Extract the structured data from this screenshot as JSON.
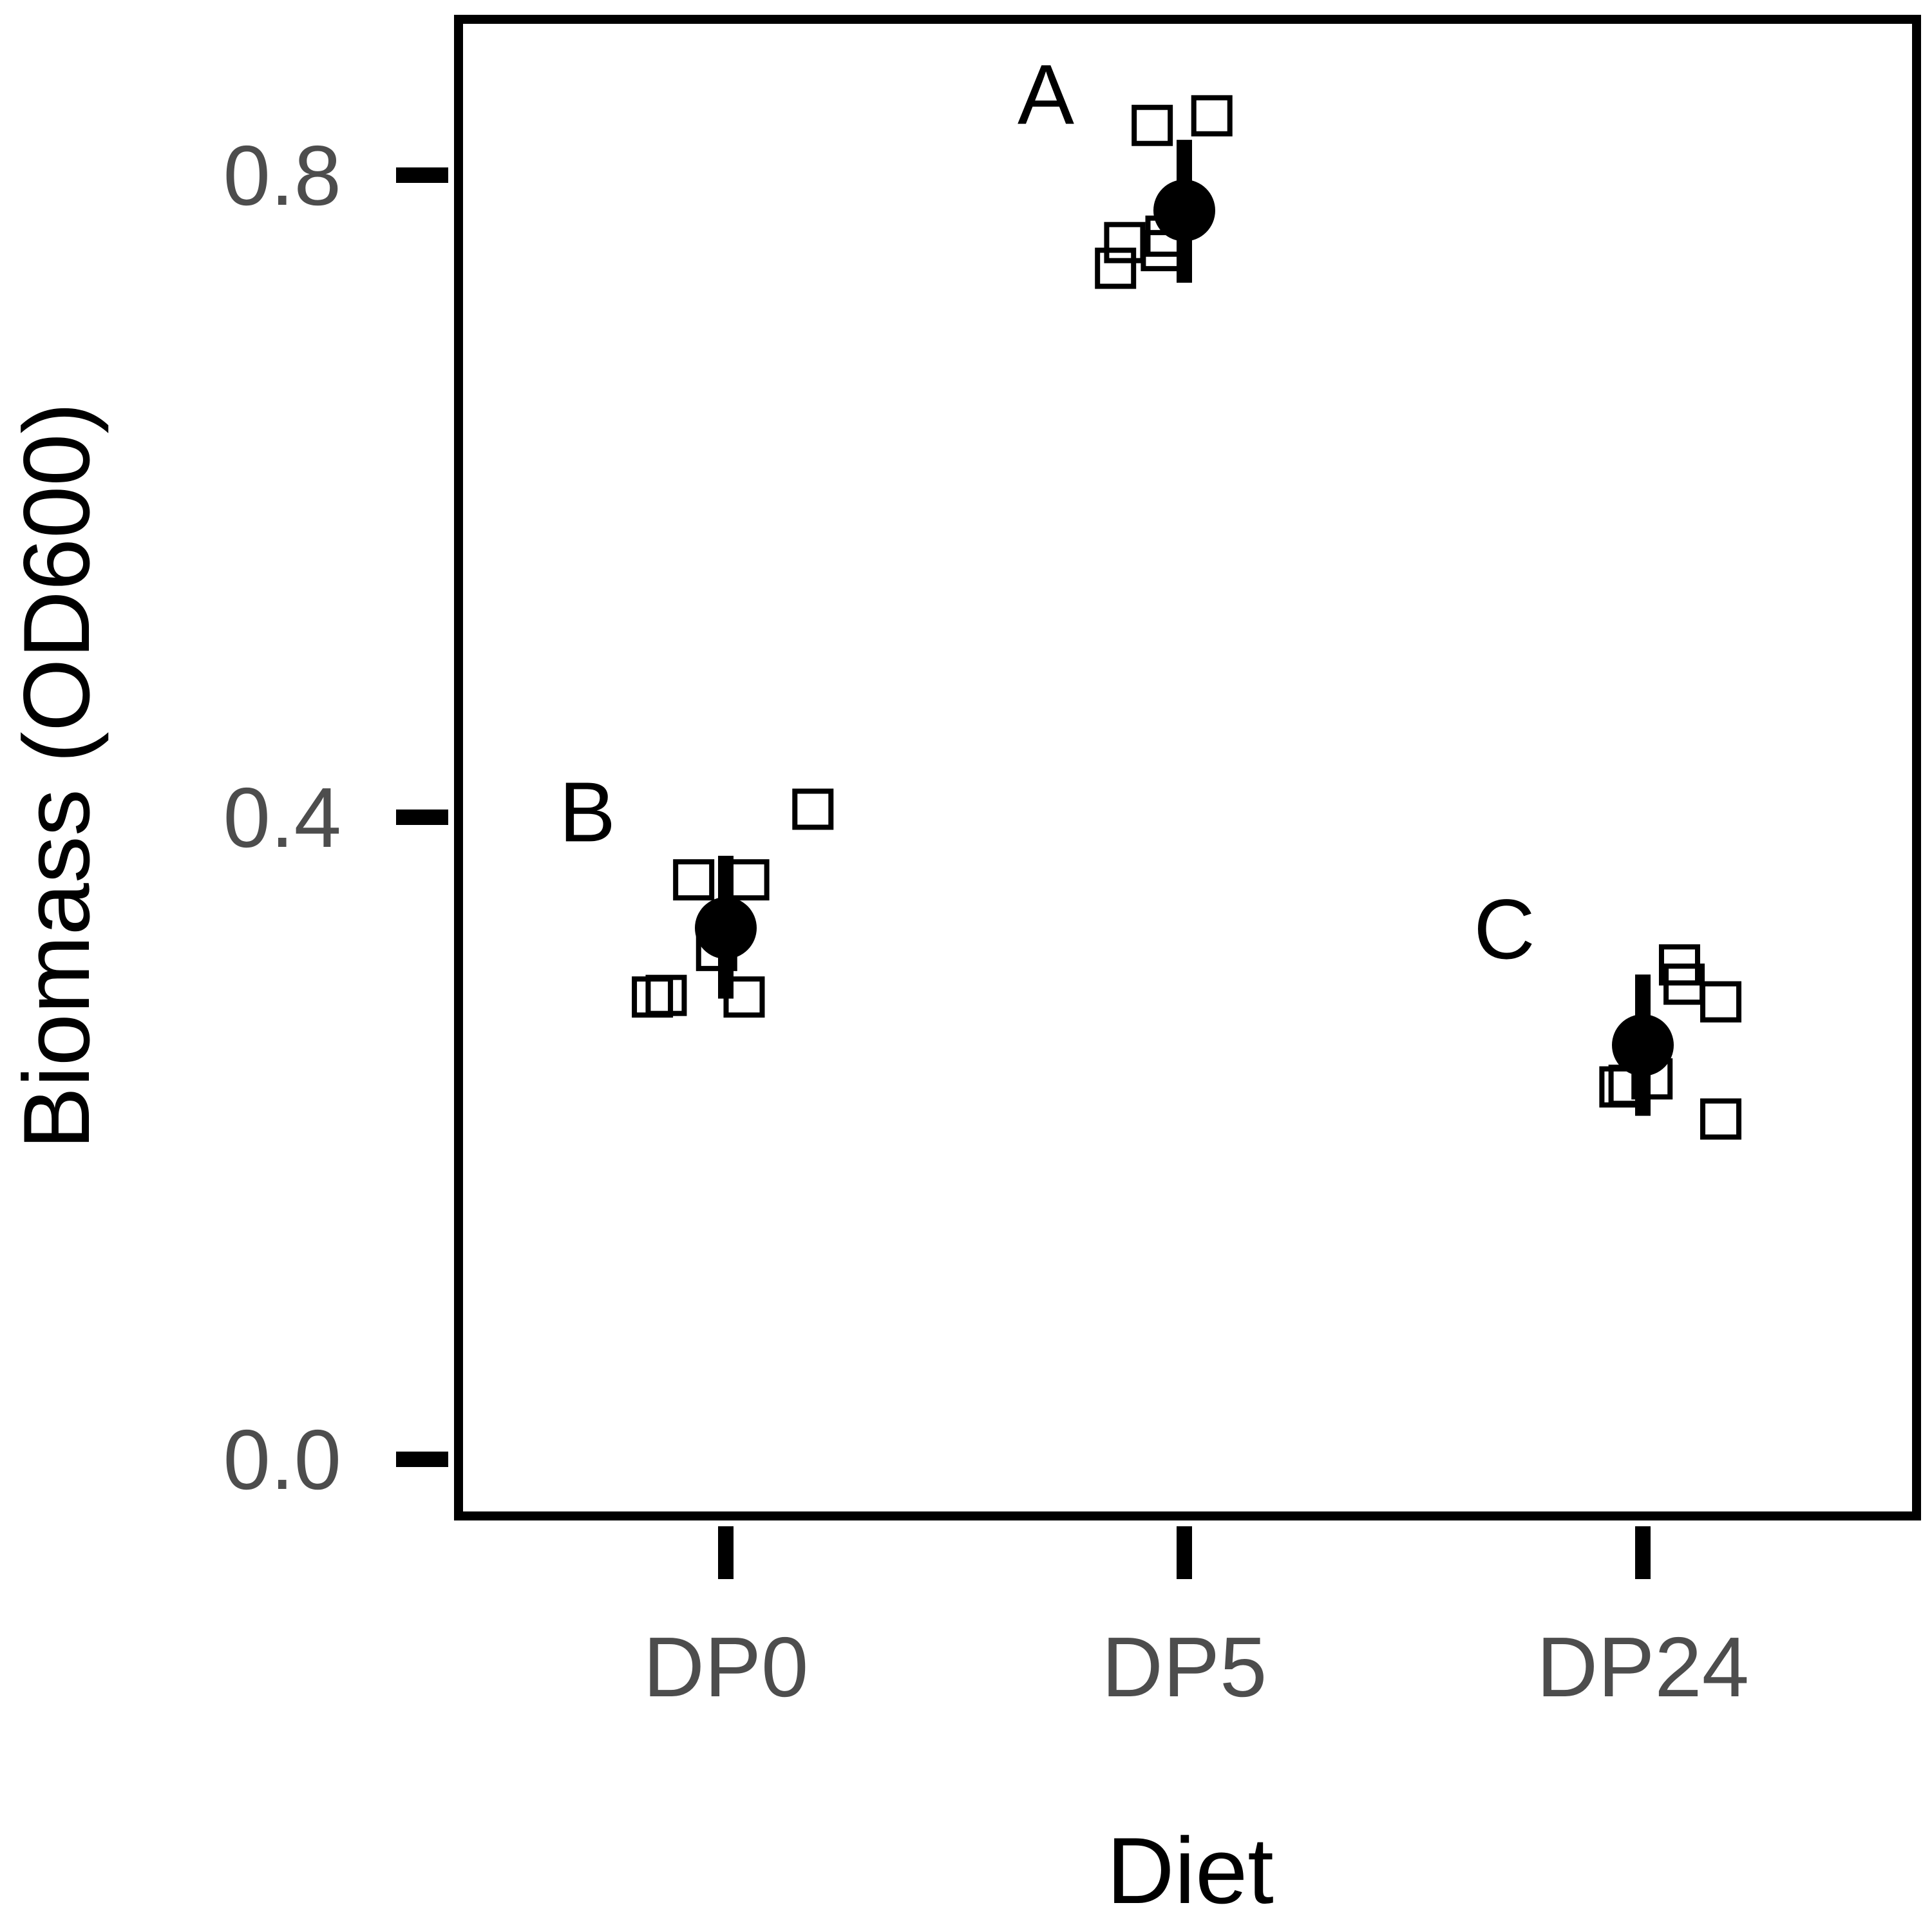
{
  "chart_data": {
    "type": "scatter",
    "xlabel": "Diet",
    "ylabel": "Biomass (OD600)",
    "categories": [
      "DP0",
      "DP5",
      "DP24"
    ],
    "ylim": [
      -0.07,
      1.0
    ],
    "yticks": [
      0.0,
      0.4,
      0.8
    ],
    "ytick_labels": [
      "0.0",
      "0.4",
      "0.8"
    ],
    "grid": false,
    "colors": {
      "marker": "#000000",
      "tick_text": "#4d4d4d"
    },
    "groups": [
      {
        "category": "DP0",
        "letter": "B",
        "mean": 0.331,
        "error_low": 0.287,
        "error_high": 0.376,
        "points": [
          {
            "offset": -0.07,
            "y": 0.361
          },
          {
            "offset": 0.05,
            "y": 0.361
          },
          {
            "offset": -0.02,
            "y": 0.317
          },
          {
            "offset": 0.04,
            "y": 0.288
          },
          {
            "offset": -0.16,
            "y": 0.288
          },
          {
            "offset": -0.13,
            "y": 0.289
          },
          {
            "offset": 0.19,
            "y": 0.405
          }
        ]
      },
      {
        "category": "DP5",
        "letter": "A",
        "mean": 0.778,
        "error_low": 0.733,
        "error_high": 0.822,
        "points": [
          {
            "offset": -0.07,
            "y": 0.831
          },
          {
            "offset": 0.06,
            "y": 0.837
          },
          {
            "offset": -0.15,
            "y": 0.742
          },
          {
            "offset": -0.13,
            "y": 0.758
          },
          {
            "offset": -0.05,
            "y": 0.753
          },
          {
            "offset": -0.04,
            "y": 0.762
          }
        ]
      },
      {
        "category": "DP24",
        "letter": "C",
        "mean": 0.258,
        "error_low": 0.214,
        "error_high": 0.302,
        "points": [
          {
            "offset": 0.08,
            "y": 0.308
          },
          {
            "offset": 0.09,
            "y": 0.296
          },
          {
            "offset": 0.17,
            "y": 0.285
          },
          {
            "offset": 0.02,
            "y": 0.237
          },
          {
            "offset": -0.05,
            "y": 0.232
          },
          {
            "offset": -0.03,
            "y": 0.233
          },
          {
            "offset": 0.17,
            "y": 0.212
          }
        ]
      }
    ]
  }
}
